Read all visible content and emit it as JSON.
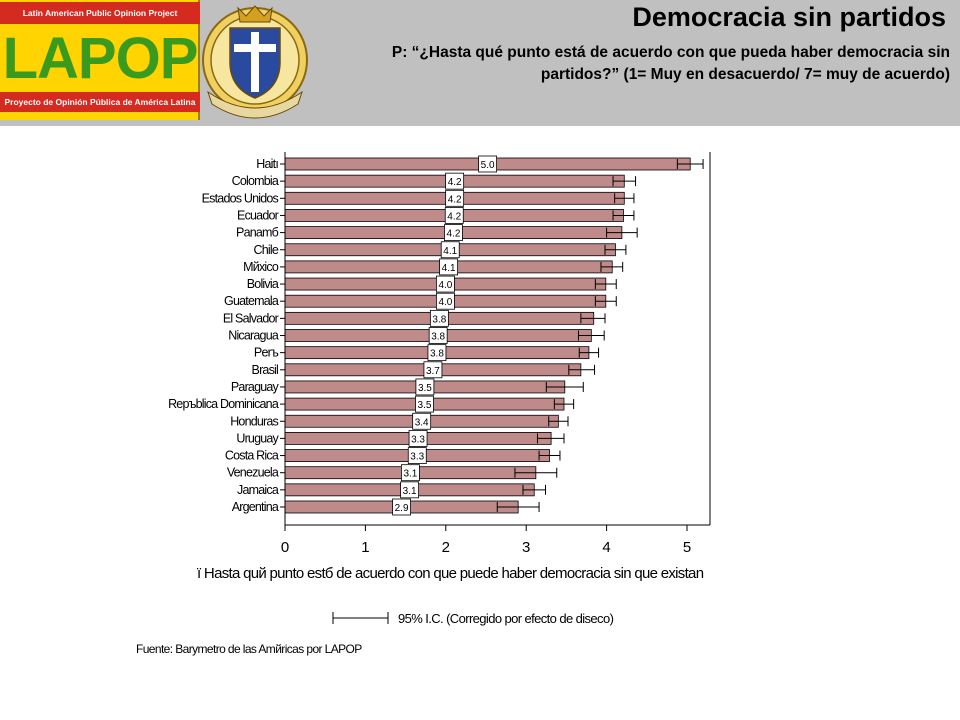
{
  "header": {
    "lapop_top": "Latin American Public Opinion Project",
    "lapop_word": "LAPOP",
    "lapop_bottom": "Proyecto de Opinión Pública de América Latina",
    "title": "Democracia sin partidos",
    "question": "P: “¿Hasta qué punto está de acuerdo con que pueda haber democracia sin partidos?” (1= Muy en desacuerdo/ 7= muy de acuerdo)"
  },
  "colors": {
    "bar_fill": "#bf8a8a",
    "header_bg": "#c0c0c0",
    "lapop_yellow": "#ffd400",
    "lapop_red": "#d42a20",
    "lapop_green": "#3a9a1e"
  },
  "chart_data": {
    "type": "bar",
    "orientation": "horizontal",
    "categories": [
      "Haitı",
      "Colombia",
      "Estados Unidos",
      "Ecuador",
      "Panamб",
      "Chile",
      "Mйxico",
      "Bolivia",
      "Guatemala",
      "El Salvador",
      "Nicaragua",
      "Perъ",
      "Brasil",
      "Paraguay",
      "Repъblica Dominicana",
      "Honduras",
      "Uruguay",
      "Costa Rica",
      "Venezuela",
      "Jamaica",
      "Argentina"
    ],
    "values": [
      5.04,
      4.22,
      4.22,
      4.21,
      4.19,
      4.11,
      4.07,
      3.99,
      3.99,
      3.84,
      3.81,
      3.78,
      3.68,
      3.48,
      3.47,
      3.4,
      3.31,
      3.29,
      3.12,
      3.1,
      2.9
    ],
    "labels": [
      "5.0",
      "4.2",
      "4.2",
      "4.2",
      "4.2",
      "4.1",
      "4.1",
      "4.0",
      "4.0",
      "3.8",
      "3.8",
      "3.8",
      "3.7",
      "3.5",
      "3.5",
      "3.4",
      "3.3",
      "3.3",
      "3.1",
      "3.1",
      "2.9"
    ],
    "ci_low": [
      4.88,
      4.08,
      4.1,
      4.08,
      4.0,
      3.98,
      3.93,
      3.86,
      3.86,
      3.68,
      3.65,
      3.66,
      3.53,
      3.25,
      3.35,
      3.28,
      3.14,
      3.16,
      2.86,
      2.96,
      2.64
    ],
    "ci_high": [
      5.2,
      4.36,
      4.34,
      4.34,
      4.38,
      4.24,
      4.2,
      4.12,
      4.12,
      3.98,
      3.97,
      3.9,
      3.85,
      3.71,
      3.59,
      3.52,
      3.47,
      3.42,
      3.38,
      3.24,
      3.16
    ],
    "xticks": [
      "0",
      "1",
      "2",
      "3",
      "4",
      "5"
    ],
    "xlim": [
      0,
      5.3
    ],
    "xlabel": "ї Hasta quй punto estб de acuerdo con que puede haber democracia sin que existan",
    "legend": "95% I.C. (Corregido por efecto de diseсo)",
    "legend_position": "bottom",
    "grid": false
  },
  "source": "Fuente: Barуmetro de las Amйricas por LAPOP"
}
